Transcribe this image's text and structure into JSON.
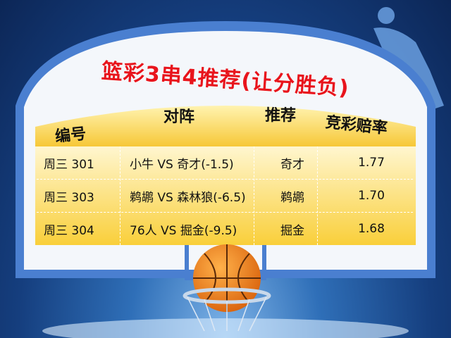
{
  "title": "篮彩3串4推荐(让分胜负)",
  "headers": {
    "id": "编号",
    "match": "对阵",
    "pick": "推荐",
    "odds": "竞彩赔率"
  },
  "rows": [
    {
      "id": "周三 301",
      "match": "小牛 VS 奇才(-1.5)",
      "pick": "奇才",
      "odds": "1.77"
    },
    {
      "id": "周三 303",
      "match": "鹈鹕 VS 森林狼(-6.5)",
      "pick": "鹈鹕",
      "odds": "1.70"
    },
    {
      "id": "周三 304",
      "match": "76人 VS 掘金(-9.5)",
      "pick": "掘金",
      "odds": "1.68"
    }
  ],
  "colors": {
    "title": "#e8141c",
    "board_border": "#4a7fd0",
    "ribbon": "#f7c830",
    "rows": "#fde27a"
  },
  "icons": [
    "basketball-icon",
    "basketball-hoop-icon",
    "player-silhouette-icon"
  ]
}
